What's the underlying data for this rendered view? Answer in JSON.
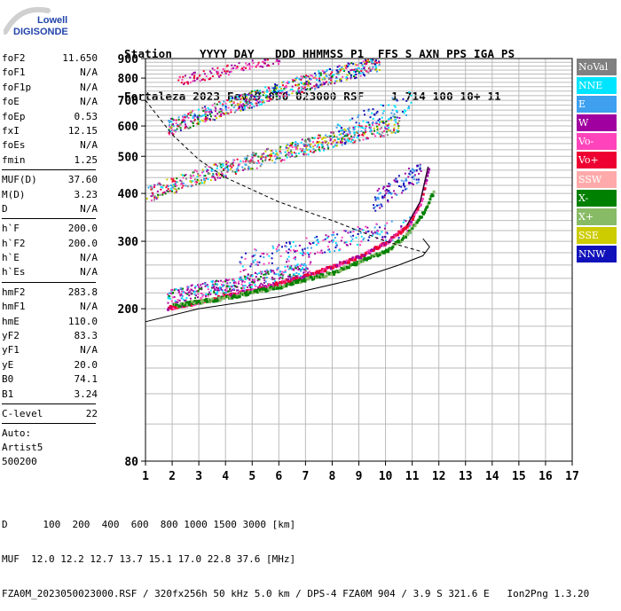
{
  "logo": {
    "line1": "Lowell",
    "line2": "DIGISONDE"
  },
  "header": {
    "line1": "Station    YYYY DAY   DDD HHMMSS P1  FFS S AXN PPS IGA PS",
    "line2": "Fortaleza 2023 Fev19 050 023000 RSF    1 714 100 10+ 11"
  },
  "params": {
    "group1": [
      {
        "name": "foF2",
        "value": "11.650"
      },
      {
        "name": "foF1",
        "value": "N/A"
      },
      {
        "name": "foF1p",
        "value": "N/A"
      },
      {
        "name": "foE",
        "value": "N/A"
      },
      {
        "name": "foEp",
        "value": "0.53"
      },
      {
        "name": "fxI",
        "value": "12.15"
      },
      {
        "name": "foEs",
        "value": "N/A"
      },
      {
        "name": "fmin",
        "value": "1.25"
      }
    ],
    "group2": [
      {
        "name": "MUF(D)",
        "value": "37.60"
      },
      {
        "name": "M(D)",
        "value": "3.23"
      },
      {
        "name": "D",
        "value": "N/A"
      }
    ],
    "group3": [
      {
        "name": "h`F",
        "value": "200.0"
      },
      {
        "name": "h`F2",
        "value": "200.0"
      },
      {
        "name": "h`E",
        "value": "N/A"
      },
      {
        "name": "h`Es",
        "value": "N/A"
      }
    ],
    "group4": [
      {
        "name": "hmF2",
        "value": "283.8"
      },
      {
        "name": "hmF1",
        "value": "N/A"
      },
      {
        "name": "hmE",
        "value": "110.0"
      },
      {
        "name": "yF2",
        "value": "83.3"
      },
      {
        "name": "yF1",
        "value": "N/A"
      },
      {
        "name": "yE",
        "value": "20.0"
      },
      {
        "name": "B0",
        "value": "74.1"
      },
      {
        "name": "B1",
        "value": "3.24"
      }
    ],
    "group5": [
      {
        "name": "C-level",
        "value": "22"
      }
    ],
    "footer_lines": [
      "Auto:",
      "Artist5",
      "500200"
    ]
  },
  "legend": [
    {
      "label": "NoVal",
      "color": "#808080"
    },
    {
      "label": "NNE",
      "color": "#00e5ff"
    },
    {
      "label": "E",
      "color": "#3ea0ee"
    },
    {
      "label": "W",
      "color": "#a000a0"
    },
    {
      "label": "Vo-",
      "color": "#ff44bb"
    },
    {
      "label": "Vo+",
      "color": "#ee0033"
    },
    {
      "label": "SSW",
      "color": "#ffaaaa"
    },
    {
      "label": "X-",
      "color": "#008000"
    },
    {
      "label": "X+",
      "color": "#88bb66"
    },
    {
      "label": "SSE",
      "color": "#cccc00"
    },
    {
      "label": "NNW",
      "color": "#1111bb"
    }
  ],
  "chart_data": {
    "type": "scatter",
    "xlim": [
      1,
      17
    ],
    "ylim": [
      80,
      900
    ],
    "xticks": [
      1,
      2,
      3,
      4,
      5,
      6,
      7,
      8,
      9,
      10,
      11,
      12,
      13,
      14,
      15,
      16,
      17
    ],
    "yticks": [
      80,
      200,
      300,
      400,
      500,
      600,
      700,
      800,
      900
    ],
    "grid": true,
    "scale": "log-y",
    "traces": {
      "o_trace": {
        "x": [
          1.5,
          3,
          5,
          7,
          9,
          10,
          10.8,
          11.3,
          11.6
        ],
        "y": [
          200,
          210,
          225,
          245,
          275,
          300,
          330,
          380,
          470
        ]
      },
      "x_trace": {
        "x": [
          2,
          4,
          6,
          8,
          10,
          10.8,
          11.4,
          11.8
        ],
        "y": [
          205,
          215,
          230,
          250,
          285,
          315,
          360,
          410
        ]
      },
      "profile": {
        "x": [
          1,
          3,
          6,
          9,
          10.5,
          11.4,
          11.65,
          11.4
        ],
        "y": [
          185,
          200,
          215,
          240,
          260,
          275,
          290,
          305
        ]
      },
      "muf_curve": {
        "x": [
          1,
          2,
          3,
          4,
          6,
          8,
          10,
          11.5
        ],
        "y": [
          700,
          570,
          490,
          440,
          380,
          340,
          300,
          280
        ]
      }
    },
    "echo_bands": [
      {
        "name": "first-hop-o",
        "color": "#ee0033",
        "x": [
          1.8,
          11.6
        ],
        "y": [
          200,
          470
        ]
      },
      {
        "name": "first-hop-w",
        "color": "#a000a0",
        "x": [
          1.8,
          7
        ],
        "y": [
          210,
          260
        ]
      },
      {
        "name": "second-hop",
        "color": "#ee0033",
        "x": [
          1,
          10.5
        ],
        "y": [
          395,
          600
        ]
      },
      {
        "name": "third-hop",
        "color": "#ee0033",
        "x": [
          1.8,
          9.8
        ],
        "y": [
          590,
          890
        ]
      },
      {
        "name": "fourth-hop",
        "color": "#ff44bb",
        "x": [
          2.2,
          6
        ],
        "y": [
          790,
          900
        ]
      }
    ]
  },
  "bottom": {
    "line1": "D      100  200  400  600  800 1000 1500 3000 [km]",
    "line2": "MUF  12.0 12.2 12.7 13.7 15.1 17.0 22.8 37.6 [MHz]",
    "line3": "FZA0M_2023050023000.RSF / 320fx256h 50 kHz 5.0 km / DPS-4 FZA0M 904 / 3.9 S 321.6 E   Ion2Png 1.3.20"
  }
}
